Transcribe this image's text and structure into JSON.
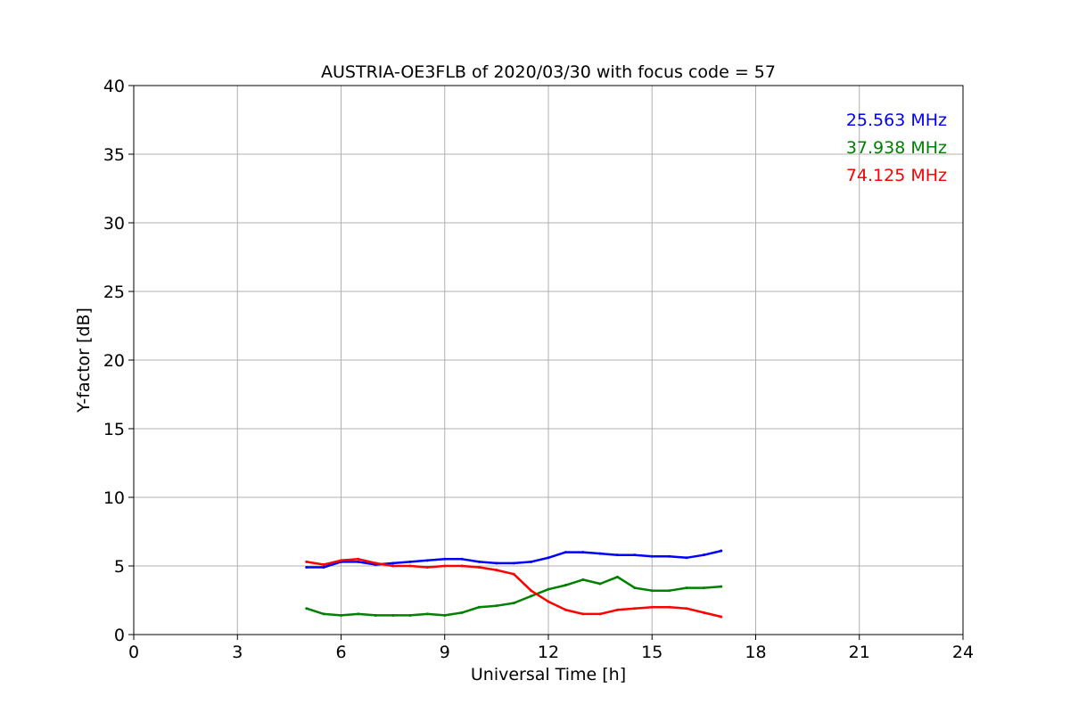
{
  "chart_data": {
    "type": "line",
    "title": "AUSTRIA-OE3FLB of 2020/03/30 with focus code = 57",
    "xlabel": "Universal Time [h]",
    "ylabel": "Y-factor [dB]",
    "xlim": [
      0,
      24
    ],
    "ylim": [
      0,
      40
    ],
    "xticks": [
      0,
      3,
      6,
      9,
      12,
      15,
      18,
      21,
      24
    ],
    "yticks": [
      0,
      5,
      10,
      15,
      20,
      25,
      30,
      35,
      40
    ],
    "grid": true,
    "legend_position": "top-right",
    "series": [
      {
        "name": "25.563 MHz",
        "color": "#0000ff",
        "x": [
          5.0,
          5.5,
          6.0,
          6.5,
          7.0,
          7.5,
          8.0,
          8.5,
          9.0,
          9.5,
          10.0,
          10.5,
          11.0,
          11.5,
          12.0,
          12.5,
          13.0,
          13.5,
          14.0,
          14.5,
          15.0,
          15.5,
          16.0,
          16.5,
          17.0
        ],
        "y": [
          4.9,
          4.9,
          5.3,
          5.3,
          5.1,
          5.2,
          5.3,
          5.4,
          5.5,
          5.5,
          5.3,
          5.2,
          5.2,
          5.3,
          5.6,
          6.0,
          6.0,
          5.9,
          5.8,
          5.8,
          5.7,
          5.7,
          5.6,
          5.8,
          6.1
        ]
      },
      {
        "name": "37.938 MHz",
        "color": "#008000",
        "x": [
          5.0,
          5.5,
          6.0,
          6.5,
          7.0,
          7.5,
          8.0,
          8.5,
          9.0,
          9.5,
          10.0,
          10.5,
          11.0,
          11.5,
          12.0,
          12.5,
          13.0,
          13.5,
          14.0,
          14.5,
          15.0,
          15.5,
          16.0,
          16.5,
          17.0
        ],
        "y": [
          1.9,
          1.5,
          1.4,
          1.5,
          1.4,
          1.4,
          1.4,
          1.5,
          1.4,
          1.6,
          2.0,
          2.1,
          2.3,
          2.8,
          3.3,
          3.6,
          4.0,
          3.7,
          4.2,
          3.4,
          3.2,
          3.2,
          3.4,
          3.4,
          3.5
        ]
      },
      {
        "name": "74.125 MHz",
        "color": "#ff0000",
        "x": [
          5.0,
          5.5,
          6.0,
          6.5,
          7.0,
          7.5,
          8.0,
          8.5,
          9.0,
          9.5,
          10.0,
          10.5,
          11.0,
          11.5,
          12.0,
          12.5,
          13.0,
          13.5,
          14.0,
          14.5,
          15.0,
          15.5,
          16.0,
          16.5,
          17.0
        ],
        "y": [
          5.3,
          5.1,
          5.4,
          5.5,
          5.2,
          5.0,
          5.0,
          4.9,
          5.0,
          5.0,
          4.9,
          4.7,
          4.4,
          3.2,
          2.4,
          1.8,
          1.5,
          1.5,
          1.8,
          1.9,
          2.0,
          2.0,
          1.9,
          1.6,
          1.3
        ]
      }
    ]
  }
}
